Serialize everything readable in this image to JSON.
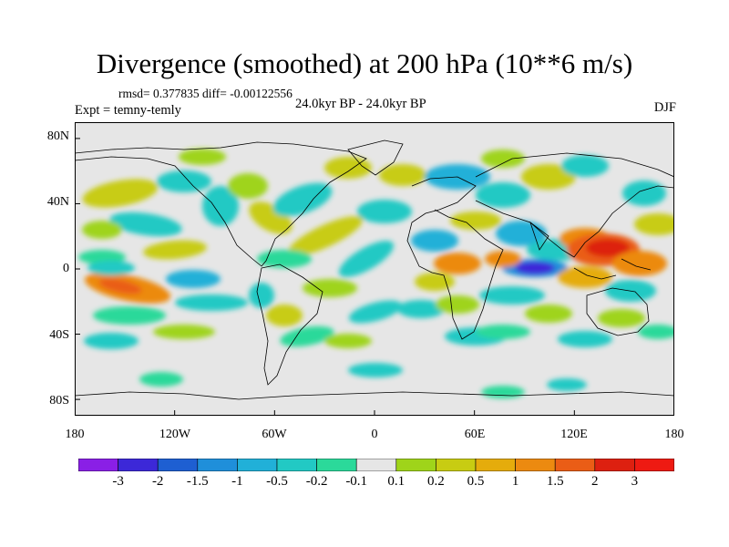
{
  "title": "Divergence (smoothed) at 200 hPa (10**6 m/s)",
  "stats": "rmsd= 0.377835 diff= -0.00122556",
  "experiment": "Expt = temny-temly",
  "period": "24.0kyr BP - 24.0kyr BP",
  "season": "DJF",
  "map": {
    "lat_labels": [
      "80N",
      "40N",
      "0",
      "40S",
      "80S"
    ],
    "lat_values": [
      80,
      40,
      0,
      -40,
      -80
    ],
    "lon_labels": [
      "180",
      "120W",
      "60W",
      "0",
      "60E",
      "120E",
      "180"
    ],
    "lon_values": [
      -180,
      -120,
      -60,
      0,
      60,
      120,
      180
    ],
    "lon_range": [
      -180,
      180
    ],
    "lat_range": [
      -90,
      90
    ]
  },
  "colorbar": {
    "labels": [
      "-3",
      "-2",
      "-1.5",
      "-1",
      "-0.5",
      "-0.2",
      "-0.1",
      "0.1",
      "0.2",
      "0.5",
      "1",
      "1.5",
      "2",
      "3"
    ],
    "colors": [
      "#8a1fe6",
      "#3c28d8",
      "#1e5fd2",
      "#1f8fda",
      "#21b0d8",
      "#22c9c4",
      "#2bd99a",
      "#e6e6e6",
      "#9fd41a",
      "#c8cc12",
      "#e5ac0c",
      "#ec8a10",
      "#ea5d16",
      "#dd2010",
      "#ee1a12"
    ]
  },
  "colors": {
    "background": "#e6e6e6",
    "coastline": "#000000"
  }
}
